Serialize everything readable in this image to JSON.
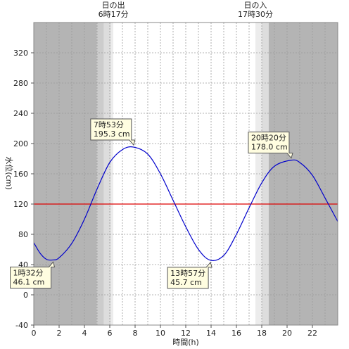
{
  "chart_data": {
    "type": "line",
    "xlabel": "時間(h)",
    "ylabel": "水位(cm)",
    "xlim": [
      0,
      24
    ],
    "ylim": [
      -40,
      360
    ],
    "x_ticks": [
      0,
      2,
      4,
      6,
      8,
      10,
      12,
      14,
      16,
      18,
      20,
      22
    ],
    "y_ticks": [
      -40,
      0,
      40,
      80,
      120,
      160,
      200,
      240,
      280,
      320
    ],
    "grid": true,
    "reference_line": {
      "value": 120,
      "color": "#dd0000"
    },
    "line_color": "#0000cc",
    "sun_events": [
      {
        "label": "日の出",
        "time_label": "6時17分",
        "hour": 6.283
      },
      {
        "label": "日の入",
        "time_label": "17時30分",
        "hour": 17.5
      }
    ],
    "series": [
      {
        "x": [
          0,
          0.5,
          1,
          1.53,
          2,
          3,
          4,
          5,
          6,
          7,
          7.88,
          9,
          10,
          11,
          12,
          13,
          13.95,
          15,
          16,
          17,
          18,
          19,
          20.33,
          21,
          22,
          23,
          24
        ],
        "values": [
          69,
          55,
          47,
          46.1,
          49,
          68,
          100,
          140,
          175,
          192,
          195.3,
          186,
          160,
          125,
          90,
          60,
          45.7,
          52,
          80,
          115,
          148,
          170,
          178.0,
          175,
          158,
          128,
          97
        ]
      }
    ],
    "annotations": [
      {
        "time": "1時32分",
        "level": "46.1 cm",
        "x": 1.53,
        "y": 46.1
      },
      {
        "time": "7時53分",
        "level": "195.3 cm",
        "x": 7.88,
        "y": 195.3
      },
      {
        "time": "13時57分",
        "level": "45.7 cm",
        "x": 13.95,
        "y": 45.7
      },
      {
        "time": "20時20分",
        "level": "178.0 cm",
        "x": 20.33,
        "y": 178.0
      }
    ]
  }
}
